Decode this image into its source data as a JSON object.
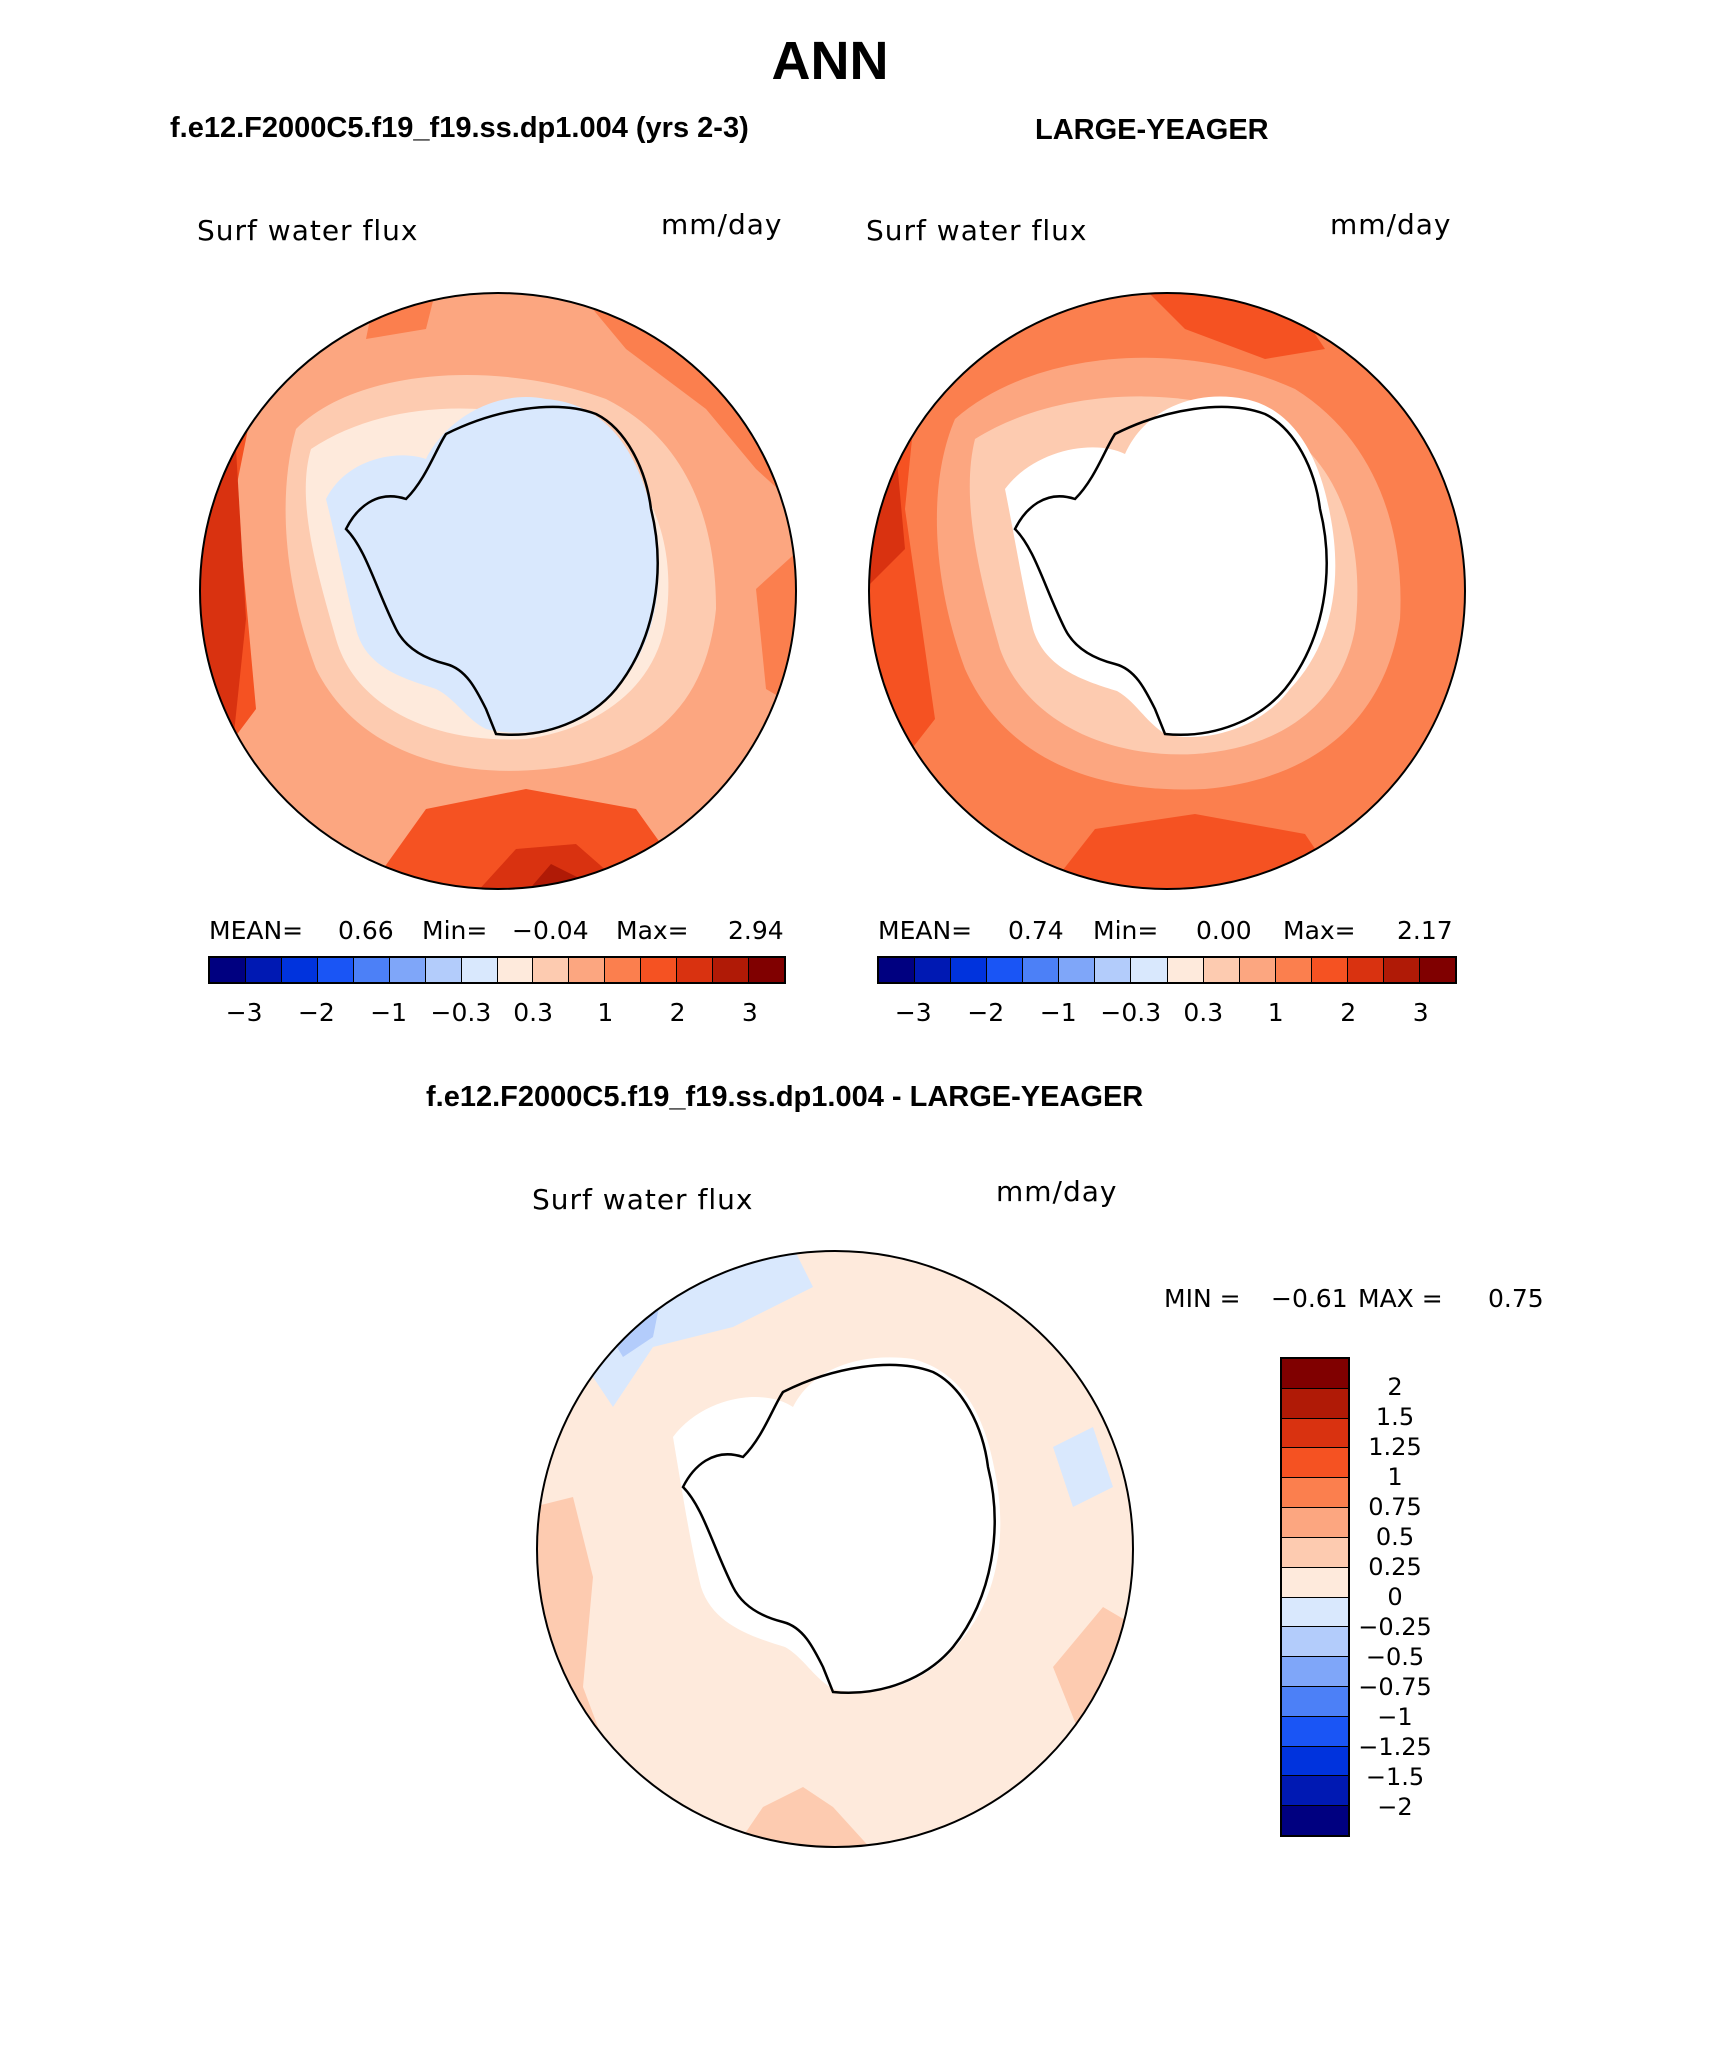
{
  "title": "ANN",
  "colors": {
    "abs_scale": [
      "#000080",
      "#0019b3",
      "#0033dd",
      "#1a55f5",
      "#4c80f7",
      "#7fa6f9",
      "#b3ccfb",
      "#d9e8fd",
      "#feeadc",
      "#fdcbb0",
      "#fca680",
      "#fb7f4e",
      "#f55222",
      "#d93210",
      "#b01a06",
      "#800000"
    ],
    "diff_scale": [
      "#000080",
      "#0019b3",
      "#0033dd",
      "#1a55f5",
      "#4c80f7",
      "#7fa6f9",
      "#b3ccfb",
      "#d9e8fd",
      "#feeadc",
      "#fdcbb0",
      "#fca680",
      "#fb7f4e",
      "#f55222",
      "#d93210",
      "#b01a06",
      "#800000"
    ],
    "land": "#ffffff",
    "coast": "#000000"
  },
  "panels": [
    {
      "case_title": "f.e12.F2000C5.f19_f19.ss.dp1.004 (yrs 2-3)",
      "variable": "Surf water flux",
      "units": "mm/day",
      "stats": {
        "mean_label": "MEAN=",
        "mean": "0.66",
        "min_label": "Min=",
        "min": "−0.04",
        "max_label": "Max=",
        "max": "2.94"
      },
      "ticks": [
        "−3",
        "−2",
        "−1",
        "−0.3",
        "0.3",
        "1",
        "2",
        "3"
      ]
    },
    {
      "case_title": "LARGE-YEAGER",
      "variable": "Surf water flux",
      "units": "mm/day",
      "stats": {
        "mean_label": "MEAN=",
        "mean": "0.74",
        "min_label": "Min=",
        "min": "0.00",
        "max_label": "Max=",
        "max": "2.17"
      },
      "ticks": [
        "−3",
        "−2",
        "−1",
        "−0.3",
        "0.3",
        "1",
        "2",
        "3"
      ]
    }
  ],
  "difference": {
    "case_title": "f.e12.F2000C5.f19_f19.ss.dp1.004 - LARGE-YEAGER",
    "variable": "Surf water flux",
    "units": "mm/day",
    "minmax": {
      "min_label": "MIN =",
      "min": "−0.61",
      "max_label": "MAX =",
      "max": "0.75"
    },
    "ticks": [
      "2",
      "1.5",
      "1.25",
      "1",
      "0.75",
      "0.5",
      "0.25",
      "0",
      "−0.25",
      "−0.5",
      "−0.75",
      "−1",
      "−1.25",
      "−1.5",
      "−2"
    ]
  }
}
